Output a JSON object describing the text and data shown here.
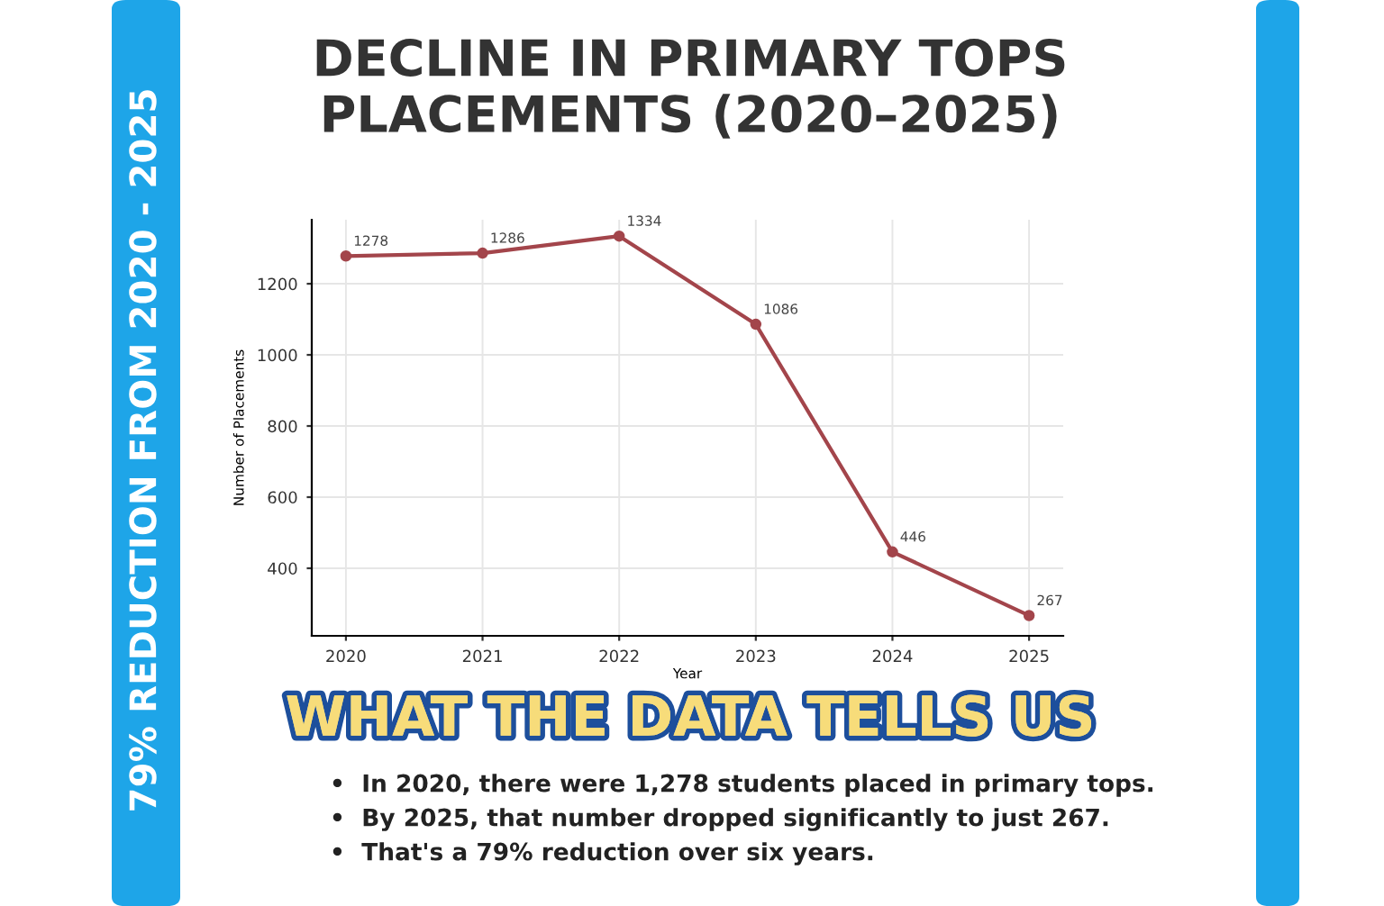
{
  "chart_data": {
    "type": "line",
    "title": "DECLINE IN PRIMARY TOPS\nPLACEMENTS (2020–2025)",
    "xlabel": "Year",
    "ylabel": "Number of Placements",
    "x": [
      2020,
      2021,
      2022,
      2023,
      2024,
      2025
    ],
    "series": [
      {
        "color": "#a3454b",
        "values": [
          1278,
          1286,
          1334,
          1086,
          446,
          267
        ]
      }
    ],
    "xlim": [
      2019.75,
      2025.25
    ],
    "xticks": [
      2020,
      2021,
      2022,
      2023,
      2024,
      2025
    ],
    "ylim": [
      210,
      1380
    ],
    "yticks": [
      400,
      600,
      800,
      1000,
      1200
    ],
    "grid": true,
    "marker": "circle",
    "line_style": "solid",
    "data_labels": true,
    "annotations": [
      "79% REDUCTION FROM 2020 - 2025",
      "WHAT THE DATA TELLS US",
      "•  In 2020, there were 1,278 students placed in primary tops.",
      "•  By 2025, that number dropped significantly to just 267.",
      "•  That's a 79% reduction over six years."
    ]
  }
}
